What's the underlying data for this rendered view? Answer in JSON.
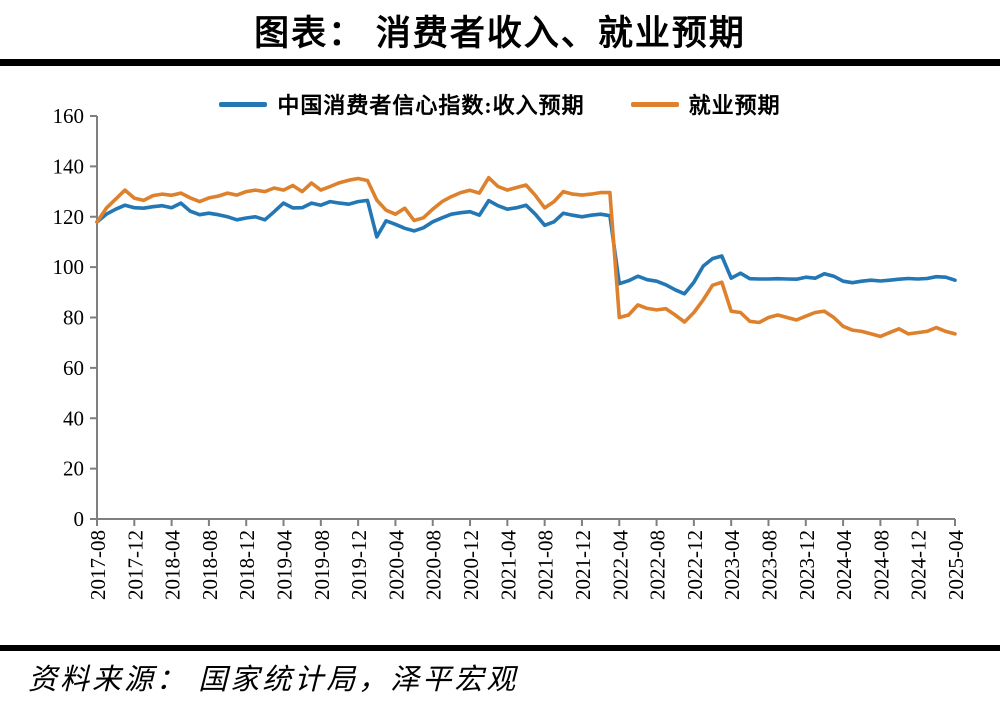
{
  "page": {
    "title": "图表： 消费者收入、就业预期",
    "source": "资料来源： 国家统计局，泽平宏观"
  },
  "chart_data": {
    "type": "line",
    "title": "图表： 消费者收入、就业预期",
    "xlabel": "",
    "ylabel": "",
    "ylim": [
      0,
      160
    ],
    "yticks": [
      0,
      20,
      40,
      60,
      80,
      100,
      120,
      140,
      160
    ],
    "grid": false,
    "legend_position": "top",
    "axis_color": "#7f7f7f",
    "x_tick_every": 4,
    "x": [
      "2017-08",
      "2017-09",
      "2017-10",
      "2017-11",
      "2017-12",
      "2018-01",
      "2018-02",
      "2018-03",
      "2018-04",
      "2018-05",
      "2018-06",
      "2018-07",
      "2018-08",
      "2018-09",
      "2018-10",
      "2018-11",
      "2018-12",
      "2019-01",
      "2019-02",
      "2019-03",
      "2019-04",
      "2019-05",
      "2019-06",
      "2019-07",
      "2019-08",
      "2019-09",
      "2019-10",
      "2019-11",
      "2019-12",
      "2020-01",
      "2020-02",
      "2020-03",
      "2020-04",
      "2020-05",
      "2020-06",
      "2020-07",
      "2020-08",
      "2020-09",
      "2020-10",
      "2020-11",
      "2020-12",
      "2021-01",
      "2021-02",
      "2021-03",
      "2021-04",
      "2021-05",
      "2021-06",
      "2021-07",
      "2021-08",
      "2021-09",
      "2021-10",
      "2021-11",
      "2021-12",
      "2022-01",
      "2022-02",
      "2022-03",
      "2022-04",
      "2022-05",
      "2022-06",
      "2022-07",
      "2022-08",
      "2022-09",
      "2022-10",
      "2022-11",
      "2022-12",
      "2023-01",
      "2023-02",
      "2023-03",
      "2023-04",
      "2023-05",
      "2023-06",
      "2023-07",
      "2023-08",
      "2023-09",
      "2023-10",
      "2023-11",
      "2023-12",
      "2024-01",
      "2024-02",
      "2024-03",
      "2024-04",
      "2024-05",
      "2024-06",
      "2024-07",
      "2024-08",
      "2024-09",
      "2024-10",
      "2024-11",
      "2024-12",
      "2025-01",
      "2025-02",
      "2025-03",
      "2025-04"
    ],
    "series": [
      {
        "name": "中国消费者信心指数:收入预期",
        "color": "#2377B4",
        "values": [
          117.9,
          121,
          123,
          124.6,
          123.6,
          123.4,
          124,
          124.4,
          123.6,
          125.4,
          122.2,
          120.8,
          121.4,
          120.8,
          120,
          118.8,
          119.5,
          120,
          118.8,
          122,
          125.4,
          123.5,
          123.6,
          125.4,
          124.6,
          126,
          125.4,
          125,
          126,
          126.5,
          112,
          118.4,
          117,
          115.4,
          114.4,
          115.6,
          118,
          119.6,
          121,
          121.6,
          122,
          120.6,
          126.4,
          124.4,
          123,
          123.6,
          124.6,
          121,
          116.6,
          118,
          121.4,
          120.6,
          120,
          120.6,
          121,
          120.4,
          93.4,
          94.6,
          96.4,
          95,
          94.4,
          93,
          91,
          89.4,
          94,
          100.4,
          103.4,
          104.4,
          95.6,
          97.6,
          95.4,
          95.3,
          95.3,
          95.4,
          95.3,
          95.2,
          96,
          95.6,
          97.4,
          96.4,
          94.4,
          93.8,
          94.4,
          94.8,
          94.5,
          94.8,
          95.2,
          95.5,
          95.3,
          95.5,
          96.2,
          96,
          94.8
        ]
      },
      {
        "name": "就业预期",
        "color": "#DE812D",
        "values": [
          117.9,
          123.4,
          127,
          130.6,
          127.4,
          126.5,
          128.4,
          129,
          128.5,
          129.4,
          127.5,
          126,
          127.5,
          128.2,
          129.4,
          128.6,
          130,
          130.6,
          130,
          131.4,
          130.6,
          132.4,
          130,
          133.4,
          130.6,
          132,
          133.5,
          134.5,
          135.2,
          134.4,
          126.6,
          122.6,
          121,
          123.4,
          118.5,
          119.6,
          123,
          126,
          128,
          129.6,
          130.5,
          129.4,
          135.5,
          132,
          130.6,
          131.6,
          132.6,
          128.5,
          123.5,
          126,
          130,
          129,
          128.6,
          129,
          129.6,
          129.6,
          80,
          81,
          85,
          83.6,
          83,
          83.5,
          81,
          78.2,
          82,
          87,
          92.8,
          94,
          82.5,
          82,
          78.5,
          78,
          80,
          81,
          80,
          79,
          80.5,
          82,
          82.5,
          80,
          76.5,
          75,
          74.5,
          73.5,
          72.5,
          74,
          75.5,
          73.5,
          74,
          74.5,
          76,
          74.5,
          73.5
        ]
      }
    ]
  }
}
